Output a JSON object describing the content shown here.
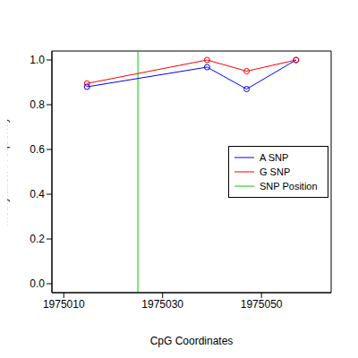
{
  "chart_data": {
    "type": "line",
    "x_label": "CpG Coordinates",
    "y_label": "Methylation Frequency",
    "x": [
      1975014.7,
      1975039,
      1975047,
      1975057
    ],
    "series": [
      {
        "name": "A SNP",
        "color": "#0000ff",
        "marker": "circle_open",
        "values": [
          0.88,
          0.968,
          0.87,
          1.0
        ]
      },
      {
        "name": "G SNP",
        "color": "#ff0000",
        "marker": "circle_open",
        "values": [
          0.895,
          1.0,
          0.95,
          1.0
        ]
      }
    ],
    "vlines": [
      {
        "name": "SNP Position",
        "x": 1975025,
        "color": "#00cc00"
      }
    ],
    "xlim": [
      1975007.6,
      1975064.1
    ],
    "xticks": [
      1975010,
      1975030,
      1975050
    ],
    "ylim": [
      -0.04,
      1.04
    ],
    "yticks": [
      {
        "value": 0,
        "label": "0.0"
      },
      {
        "value": 0.2,
        "label": "0.2"
      },
      {
        "value": 0.4,
        "label": "0.4"
      },
      {
        "value": 0.6,
        "label": "0.6"
      },
      {
        "value": 0.8,
        "label": "0.8"
      },
      {
        "value": 1,
        "label": "1.0"
      }
    ],
    "legend": "right"
  }
}
